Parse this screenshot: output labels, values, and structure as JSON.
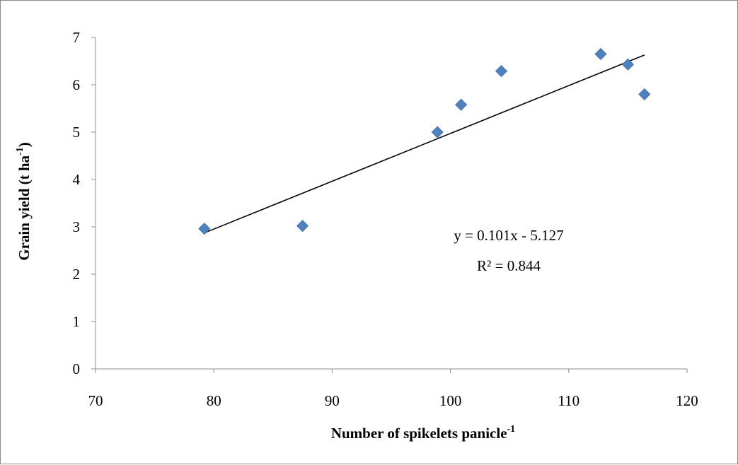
{
  "chart_data": {
    "type": "scatter",
    "title": "",
    "xlabel": {
      "main": "Number of spikelets panicle",
      "sup": "-1"
    },
    "ylabel": {
      "main": "Grain yield (t ha",
      "sup": "-1",
      "tail": ")"
    },
    "xlim": [
      70,
      120
    ],
    "ylim": [
      0,
      7
    ],
    "x_ticks": [
      70,
      80,
      90,
      100,
      110,
      120
    ],
    "y_ticks": [
      0,
      1,
      2,
      3,
      4,
      5,
      6,
      7
    ],
    "grid": false,
    "legend": "none",
    "marker": "diamond",
    "marker_color": "#4f81bd",
    "points": [
      {
        "x": 79.2,
        "y": 2.96
      },
      {
        "x": 87.5,
        "y": 3.02
      },
      {
        "x": 98.9,
        "y": 5.0
      },
      {
        "x": 100.9,
        "y": 5.58
      },
      {
        "x": 104.3,
        "y": 6.29
      },
      {
        "x": 112.7,
        "y": 6.65
      },
      {
        "x": 115.0,
        "y": 6.43
      },
      {
        "x": 116.4,
        "y": 5.8
      }
    ],
    "trendline": {
      "slope": 0.101,
      "intercept": -5.127,
      "x_range": [
        79.2,
        116.4
      ],
      "color": "#000000"
    },
    "annotations": [
      "y = 0.101x - 5.127",
      "R² = 0.844"
    ]
  }
}
